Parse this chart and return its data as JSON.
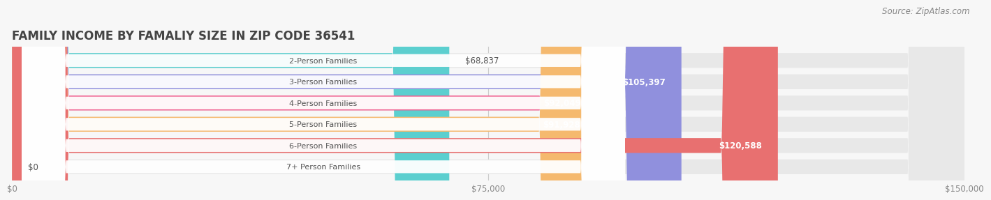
{
  "title": "FAMILY INCOME BY FAMALIY SIZE IN ZIP CODE 36541",
  "source": "Source: ZipAtlas.com",
  "categories": [
    "2-Person Families",
    "3-Person Families",
    "4-Person Families",
    "5-Person Families",
    "6-Person Families",
    "7+ Person Families"
  ],
  "values": [
    68837,
    105397,
    92049,
    91928,
    120588,
    0
  ],
  "bar_colors": [
    "#5bcfcf",
    "#9090dd",
    "#f06090",
    "#f5b96e",
    "#e87070",
    "#a0b8e8"
  ],
  "bg_color": "#f7f7f7",
  "bar_bg_color": "#e8e8e8",
  "xlim": [
    0,
    150000
  ],
  "xtick_values": [
    0,
    75000,
    150000
  ],
  "xtick_labels": [
    "$0",
    "$75,000",
    "$150,000"
  ],
  "title_fontsize": 12,
  "source_fontsize": 8.5,
  "label_fontsize": 8.5,
  "tick_fontsize": 8.5,
  "category_fontsize": 8.0
}
